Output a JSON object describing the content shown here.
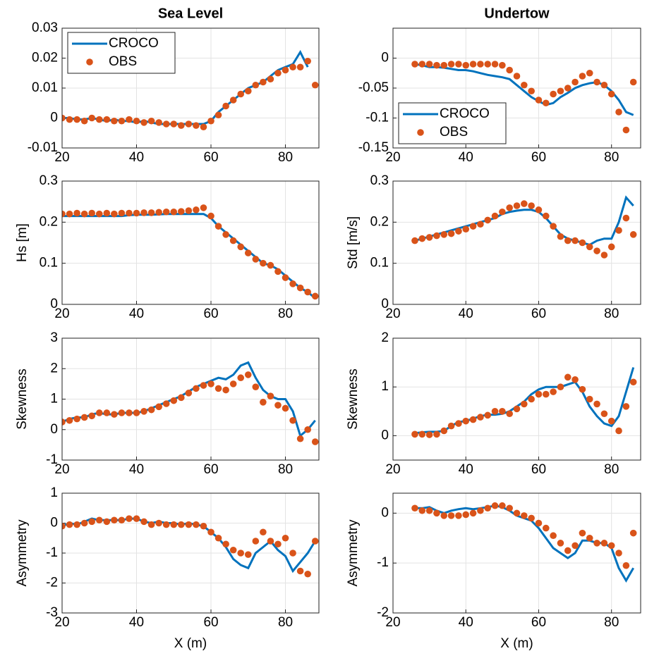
{
  "chart_data": [
    {
      "type": "line",
      "title": "Sea Level",
      "x": [
        20,
        22,
        24,
        26,
        28,
        30,
        32,
        34,
        36,
        38,
        40,
        42,
        44,
        46,
        48,
        50,
        52,
        54,
        56,
        58,
        60,
        62,
        64,
        66,
        68,
        70,
        72,
        74,
        76,
        78,
        80,
        82,
        84,
        86,
        88
      ],
      "series": [
        {
          "name": "CROCO",
          "color": "#0072bd",
          "style": "line",
          "values": [
            0,
            0,
            -0.0005,
            -0.0005,
            0,
            -0.0005,
            -0.001,
            -0.0005,
            -0.001,
            -0.001,
            -0.0015,
            -0.001,
            -0.0015,
            -0.002,
            -0.002,
            -0.002,
            -0.002,
            -0.002,
            -0.002,
            -0.002,
            -0.001,
            0.002,
            0.004,
            0.006,
            0.008,
            0.01,
            0.011,
            0.012,
            0.014,
            0.016,
            0.017,
            0.018,
            0.022,
            0.017,
            null
          ]
        },
        {
          "name": "OBS",
          "color": "#d95319",
          "style": "markers",
          "values": [
            0,
            -0.0005,
            -0.0005,
            -0.001,
            0,
            -0.0005,
            -0.0005,
            -0.001,
            -0.001,
            -0.0005,
            -0.001,
            -0.0015,
            -0.001,
            -0.0015,
            -0.002,
            -0.002,
            -0.0025,
            -0.002,
            -0.0025,
            -0.003,
            -0.001,
            0.001,
            0.004,
            0.006,
            0.008,
            0.009,
            0.011,
            0.012,
            0.013,
            0.015,
            0.016,
            0.017,
            0.017,
            0.019,
            0.011
          ]
        }
      ],
      "xlim": [
        20,
        89
      ],
      "ylim": [
        -0.01,
        0.03
      ],
      "xticks": [
        20,
        40,
        60,
        80
      ],
      "yticks": [
        -0.01,
        0,
        0.01,
        0.02,
        0.03
      ],
      "grid": true,
      "legend": "upper left"
    },
    {
      "type": "line",
      "title": "Undertow",
      "x": [
        26,
        28,
        30,
        32,
        34,
        36,
        38,
        40,
        42,
        44,
        46,
        48,
        50,
        52,
        54,
        56,
        58,
        60,
        62,
        64,
        66,
        68,
        70,
        72,
        74,
        76,
        78,
        80,
        82,
        84,
        86
      ],
      "series": [
        {
          "name": "CROCO",
          "color": "#0072bd",
          "style": "line",
          "values": [
            -0.01,
            -0.012,
            -0.015,
            -0.015,
            -0.016,
            -0.018,
            -0.02,
            -0.02,
            -0.022,
            -0.025,
            -0.028,
            -0.03,
            -0.032,
            -0.035,
            -0.045,
            -0.055,
            -0.065,
            -0.072,
            -0.078,
            -0.075,
            -0.065,
            -0.058,
            -0.05,
            -0.045,
            -0.042,
            -0.04,
            -0.045,
            -0.055,
            -0.07,
            -0.09,
            -0.095
          ]
        },
        {
          "name": "OBS",
          "color": "#d95319",
          "style": "markers",
          "values": [
            -0.01,
            -0.01,
            -0.01,
            -0.012,
            -0.012,
            -0.01,
            -0.01,
            -0.012,
            -0.01,
            -0.01,
            -0.01,
            -0.01,
            -0.012,
            -0.02,
            -0.03,
            -0.045,
            -0.055,
            -0.07,
            -0.075,
            -0.06,
            -0.055,
            -0.05,
            -0.04,
            -0.03,
            -0.025,
            -0.04,
            -0.045,
            -0.06,
            -0.09,
            -0.12,
            -0.04
          ]
        }
      ],
      "xlim": [
        20,
        88
      ],
      "ylim": [
        -0.15,
        0.05
      ],
      "xticks": [
        20,
        40,
        60,
        80
      ],
      "yticks": [
        -0.15,
        -0.1,
        -0.05,
        0
      ],
      "grid": true,
      "legend": "lower left"
    },
    {
      "type": "line",
      "ylabel": "Hs [m]",
      "x": [
        20,
        22,
        24,
        26,
        28,
        30,
        32,
        34,
        36,
        38,
        40,
        42,
        44,
        46,
        48,
        50,
        52,
        54,
        56,
        58,
        60,
        62,
        64,
        66,
        68,
        70,
        72,
        74,
        76,
        78,
        80,
        82,
        84,
        86,
        88
      ],
      "series": [
        {
          "color": "#0072bd",
          "style": "line",
          "values": [
            0.215,
            0.215,
            0.215,
            0.215,
            0.215,
            0.215,
            0.215,
            0.215,
            0.215,
            0.217,
            0.218,
            0.218,
            0.218,
            0.219,
            0.22,
            0.22,
            0.22,
            0.22,
            0.22,
            0.22,
            0.21,
            0.19,
            0.175,
            0.16,
            0.145,
            0.13,
            0.115,
            0.1,
            0.095,
            0.085,
            0.07,
            0.055,
            0.04,
            0.03,
            0.015
          ]
        },
        {
          "color": "#d95319",
          "style": "markers",
          "values": [
            0.22,
            0.22,
            0.222,
            0.22,
            0.222,
            0.22,
            0.222,
            0.22,
            0.222,
            0.222,
            0.222,
            0.223,
            0.223,
            0.224,
            0.225,
            0.225,
            0.226,
            0.228,
            0.23,
            0.235,
            0.215,
            0.19,
            0.17,
            0.155,
            0.14,
            0.125,
            0.11,
            0.1,
            0.095,
            0.08,
            0.065,
            0.05,
            0.04,
            0.03,
            0.02
          ]
        }
      ],
      "xlim": [
        20,
        89
      ],
      "ylim": [
        0,
        0.3
      ],
      "xticks": [
        20,
        40,
        60,
        80
      ],
      "yticks": [
        0,
        0.1,
        0.2,
        0.3
      ],
      "grid": true
    },
    {
      "type": "line",
      "ylabel": "Std [m/s]",
      "x": [
        26,
        28,
        30,
        32,
        34,
        36,
        38,
        40,
        42,
        44,
        46,
        48,
        50,
        52,
        54,
        56,
        58,
        60,
        62,
        64,
        66,
        68,
        70,
        72,
        74,
        76,
        78,
        80,
        82,
        84,
        86
      ],
      "series": [
        {
          "color": "#0072bd",
          "style": "line",
          "values": [
            0.155,
            0.16,
            0.165,
            0.17,
            0.175,
            0.18,
            0.185,
            0.19,
            0.195,
            0.2,
            0.205,
            0.21,
            0.22,
            0.225,
            0.228,
            0.23,
            0.23,
            0.225,
            0.21,
            0.19,
            0.17,
            0.16,
            0.155,
            0.15,
            0.145,
            0.155,
            0.16,
            0.16,
            0.2,
            0.26,
            0.24
          ]
        },
        {
          "color": "#d95319",
          "style": "markers",
          "values": [
            0.155,
            0.16,
            0.163,
            0.167,
            0.17,
            0.172,
            0.178,
            0.183,
            0.19,
            0.195,
            0.205,
            0.215,
            0.225,
            0.235,
            0.24,
            0.245,
            0.24,
            0.23,
            0.215,
            0.19,
            0.165,
            0.155,
            0.155,
            0.15,
            0.14,
            0.13,
            0.12,
            0.14,
            0.18,
            0.21,
            0.17
          ]
        }
      ],
      "xlim": [
        20,
        88
      ],
      "ylim": [
        0,
        0.3
      ],
      "xticks": [
        20,
        40,
        60,
        80
      ],
      "yticks": [
        0,
        0.1,
        0.2,
        0.3
      ],
      "grid": true
    },
    {
      "type": "line",
      "ylabel": "Skewness",
      "x": [
        20,
        22,
        24,
        26,
        28,
        30,
        32,
        34,
        36,
        38,
        40,
        42,
        44,
        46,
        48,
        50,
        52,
        54,
        56,
        58,
        60,
        62,
        64,
        66,
        68,
        70,
        72,
        74,
        76,
        78,
        80,
        82,
        84,
        86,
        88
      ],
      "series": [
        {
          "color": "#0072bd",
          "style": "line",
          "values": [
            0.25,
            0.35,
            0.4,
            0.4,
            0.5,
            0.55,
            0.5,
            0.5,
            0.55,
            0.55,
            0.55,
            0.6,
            0.7,
            0.8,
            0.9,
            1.0,
            1.1,
            1.25,
            1.4,
            1.5,
            1.6,
            1.7,
            1.65,
            1.8,
            2.1,
            2.2,
            1.7,
            1.3,
            1.1,
            1.0,
            1.0,
            0.6,
            -0.2,
            0,
            0.3
          ]
        },
        {
          "color": "#d95319",
          "style": "markers",
          "values": [
            0.25,
            0.3,
            0.35,
            0.4,
            0.45,
            0.55,
            0.55,
            0.5,
            0.55,
            0.55,
            0.55,
            0.6,
            0.65,
            0.75,
            0.85,
            0.95,
            1.05,
            1.2,
            1.35,
            1.45,
            1.5,
            1.35,
            1.3,
            1.5,
            1.7,
            1.8,
            1.4,
            0.9,
            1.1,
            0.8,
            0.7,
            0.3,
            -0.3,
            0,
            -0.4
          ]
        }
      ],
      "xlim": [
        20,
        89
      ],
      "ylim": [
        -1,
        3
      ],
      "xticks": [
        20,
        40,
        60,
        80
      ],
      "yticks": [
        -1,
        0,
        1,
        2,
        3
      ],
      "grid": true
    },
    {
      "type": "line",
      "ylabel": "Skewness",
      "x": [
        26,
        28,
        30,
        32,
        34,
        36,
        38,
        40,
        42,
        44,
        46,
        48,
        50,
        52,
        54,
        56,
        58,
        60,
        62,
        64,
        66,
        68,
        70,
        72,
        74,
        76,
        78,
        80,
        82,
        84,
        86
      ],
      "series": [
        {
          "color": "#0072bd",
          "style": "line",
          "values": [
            0.05,
            0.07,
            0.08,
            0.08,
            0.1,
            0.2,
            0.28,
            0.3,
            0.35,
            0.4,
            0.43,
            0.43,
            0.45,
            0.5,
            0.6,
            0.7,
            0.85,
            0.95,
            1.0,
            1.0,
            1.0,
            1.05,
            1.1,
            0.9,
            0.6,
            0.4,
            0.25,
            0.2,
            0.4,
            0.9,
            1.4
          ]
        },
        {
          "color": "#d95319",
          "style": "markers",
          "values": [
            0.03,
            0.03,
            0.02,
            0.03,
            0.1,
            0.2,
            0.25,
            0.3,
            0.33,
            0.38,
            0.42,
            0.5,
            0.5,
            0.45,
            0.55,
            0.65,
            0.75,
            0.85,
            0.85,
            0.9,
            1.0,
            1.2,
            1.15,
            0.95,
            0.75,
            0.65,
            0.45,
            0.3,
            0.1,
            0.6,
            1.1
          ]
        }
      ],
      "xlim": [
        20,
        88
      ],
      "ylim": [
        -0.5,
        2
      ],
      "xticks": [
        20,
        40,
        60,
        80
      ],
      "yticks": [
        0,
        1,
        2
      ],
      "grid": true
    },
    {
      "type": "line",
      "ylabel": "Asymmetry",
      "xlabel": "X (m)",
      "x": [
        20,
        22,
        24,
        26,
        28,
        30,
        32,
        34,
        36,
        38,
        40,
        42,
        44,
        46,
        48,
        50,
        52,
        54,
        56,
        58,
        60,
        62,
        64,
        66,
        68,
        70,
        72,
        74,
        76,
        78,
        80,
        82,
        84,
        86,
        88
      ],
      "series": [
        {
          "color": "#0072bd",
          "style": "line",
          "values": [
            -0.1,
            0,
            -0.05,
            0.05,
            0.15,
            0.1,
            0.1,
            0.1,
            0.1,
            0.15,
            0.15,
            0.05,
            0,
            0.05,
            0,
            0,
            -0.05,
            0,
            -0.05,
            -0.1,
            -0.3,
            -0.5,
            -0.8,
            -1.2,
            -1.4,
            -1.5,
            -1.0,
            -0.8,
            -0.6,
            -0.9,
            -1.1,
            -1.6,
            -1.3,
            -1.0,
            -0.6
          ]
        },
        {
          "color": "#d95319",
          "style": "markers",
          "values": [
            -0.1,
            -0.05,
            -0.05,
            0,
            0.05,
            0.1,
            0.05,
            0.1,
            0.1,
            0.15,
            0.15,
            0.05,
            -0.05,
            0,
            -0.05,
            -0.05,
            -0.05,
            -0.05,
            -0.05,
            -0.1,
            -0.3,
            -0.5,
            -0.7,
            -0.9,
            -1.0,
            -1.05,
            -0.6,
            -0.3,
            -0.6,
            -0.7,
            -0.5,
            -1.0,
            -1.6,
            -1.7,
            -0.6
          ]
        }
      ],
      "xlim": [
        20,
        89
      ],
      "ylim": [
        -3,
        1
      ],
      "xticks": [
        20,
        40,
        60,
        80
      ],
      "yticks": [
        -3,
        -2,
        -1,
        0,
        1
      ],
      "grid": true
    },
    {
      "type": "line",
      "ylabel": "Asymmetry",
      "xlabel": "X (m)",
      "x": [
        26,
        28,
        30,
        32,
        34,
        36,
        38,
        40,
        42,
        44,
        46,
        48,
        50,
        52,
        54,
        56,
        58,
        60,
        62,
        64,
        66,
        68,
        70,
        72,
        74,
        76,
        78,
        80,
        82,
        84,
        86
      ],
      "series": [
        {
          "color": "#0072bd",
          "style": "line",
          "values": [
            0.1,
            0.1,
            0.12,
            0.05,
            0,
            0.05,
            0.08,
            0.1,
            0.08,
            0.1,
            0.12,
            0.15,
            0.12,
            0.05,
            -0.05,
            -0.1,
            -0.15,
            -0.3,
            -0.5,
            -0.7,
            -0.8,
            -0.9,
            -0.8,
            -0.55,
            -0.55,
            -0.6,
            -0.6,
            -0.7,
            -1.1,
            -1.35,
            -1.1
          ]
        },
        {
          "color": "#d95319",
          "style": "markers",
          "values": [
            0.1,
            0.05,
            0.05,
            0,
            -0.05,
            -0.05,
            -0.05,
            -0.03,
            0,
            0.05,
            0.1,
            0.15,
            0.15,
            0.1,
            0,
            -0.05,
            -0.1,
            -0.2,
            -0.3,
            -0.45,
            -0.6,
            -0.75,
            -0.65,
            -0.4,
            -0.5,
            -0.6,
            -0.6,
            -0.65,
            -0.8,
            -1.05,
            -0.4
          ]
        }
      ],
      "xlim": [
        20,
        88
      ],
      "ylim": [
        -2,
        0.4
      ],
      "xticks": [
        20,
        40,
        60,
        80
      ],
      "yticks": [
        -2,
        -1,
        0
      ],
      "grid": true
    }
  ]
}
